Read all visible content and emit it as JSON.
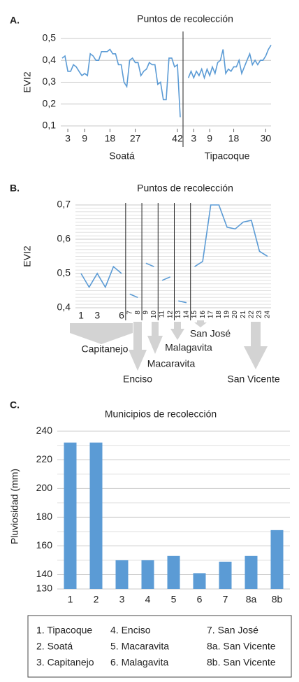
{
  "chart_data": [
    {
      "type": "line",
      "panel_label": "A.",
      "title": "Puntos de recolección",
      "y_label": "EVI2",
      "color": "#5b9bd5",
      "grid": true,
      "ylim": [
        0.1,
        0.5
      ],
      "yticks": [
        {
          "value": 0.1,
          "label": "0,1"
        },
        {
          "value": 0.2,
          "label": "0,2"
        },
        {
          "value": 0.3,
          "label": "0,3"
        },
        {
          "value": 0.4,
          "label": "0,4"
        },
        {
          "value": 0.5,
          "label": "0,5"
        }
      ],
      "series": [
        {
          "name": "Soatá",
          "xlim": [
            0.5,
            44
          ],
          "xticks": [
            3,
            9,
            18,
            27,
            42
          ],
          "x": [
            1,
            2,
            3,
            4,
            5,
            6,
            7,
            8,
            9,
            10,
            11,
            12,
            13,
            14,
            15,
            16,
            17,
            18,
            19,
            20,
            21,
            22,
            23,
            24,
            25,
            26,
            27,
            28,
            29,
            30,
            31,
            32,
            33,
            34,
            35,
            36,
            37,
            38,
            39,
            40,
            41,
            42,
            43
          ],
          "values": [
            0.41,
            0.42,
            0.35,
            0.35,
            0.38,
            0.37,
            0.35,
            0.33,
            0.34,
            0.33,
            0.43,
            0.42,
            0.4,
            0.4,
            0.44,
            0.44,
            0.44,
            0.45,
            0.43,
            0.43,
            0.38,
            0.38,
            0.3,
            0.28,
            0.4,
            0.41,
            0.39,
            0.39,
            0.33,
            0.35,
            0.36,
            0.39,
            0.38,
            0.38,
            0.29,
            0.3,
            0.22,
            0.22,
            0.41,
            0.41,
            0.37,
            0.38,
            0.14
          ]
        },
        {
          "name": "Tipacoque",
          "xlim": [
            -1,
            32
          ],
          "xticks": [
            3,
            9,
            18,
            30
          ],
          "x": [
            1,
            2,
            3,
            4,
            5,
            6,
            7,
            8,
            9,
            10,
            11,
            12,
            13,
            14,
            15,
            16,
            17,
            18,
            19,
            20,
            21,
            22,
            23,
            24,
            25,
            26,
            27,
            28,
            29,
            30,
            31,
            32
          ],
          "values": [
            0.32,
            0.35,
            0.32,
            0.35,
            0.33,
            0.36,
            0.32,
            0.36,
            0.33,
            0.37,
            0.34,
            0.39,
            0.4,
            0.45,
            0.34,
            0.36,
            0.35,
            0.37,
            0.37,
            0.4,
            0.34,
            0.37,
            0.4,
            0.43,
            0.38,
            0.4,
            0.38,
            0.4,
            0.4,
            0.42,
            0.45,
            0.47
          ]
        }
      ]
    },
    {
      "type": "line",
      "panel_label": "B.",
      "title": "Puntos de recolección",
      "y_label": "EVI2",
      "color": "#5b9bd5",
      "grid": true,
      "ylim": [
        0.4,
        0.7
      ],
      "xlim": [
        1,
        24
      ],
      "yticks": [
        {
          "value": 0.4,
          "label": "0,4"
        },
        {
          "value": 0.5,
          "label": "0,5"
        },
        {
          "value": 0.6,
          "label": "0,6"
        },
        {
          "value": 0.7,
          "label": "0,7"
        }
      ],
      "minor_yticks": [
        0.41,
        0.42,
        0.43,
        0.44,
        0.45,
        0.46,
        0.47,
        0.48,
        0.49,
        0.51,
        0.52,
        0.53,
        0.54,
        0.55,
        0.56,
        0.57,
        0.58,
        0.59,
        0.61,
        0.62,
        0.63,
        0.64,
        0.65,
        0.66,
        0.67,
        0.68,
        0.69
      ],
      "xticks": [
        1,
        3,
        6,
        7,
        8,
        9,
        10,
        11,
        12,
        13,
        14,
        15,
        16,
        17,
        18,
        19,
        20,
        21,
        22,
        23,
        24
      ],
      "groups": [
        {
          "name": "Capitanejo",
          "x": [
            1,
            2,
            3,
            4,
            5,
            6
          ],
          "values": [
            0.5,
            0.46,
            0.5,
            0.46,
            0.52,
            0.5
          ]
        },
        {
          "name": "Enciso",
          "x": [
            7,
            8
          ],
          "values": [
            0.44,
            0.43
          ]
        },
        {
          "name": "Macaravita",
          "x": [
            9,
            10
          ],
          "values": [
            0.53,
            0.52
          ]
        },
        {
          "name": "Malagavita",
          "x": [
            11,
            12
          ],
          "values": [
            0.48,
            0.49
          ]
        },
        {
          "name": "San José",
          "x": [
            13,
            14
          ],
          "values": [
            0.42,
            0.415
          ]
        },
        {
          "name": "San Vicente",
          "x": [
            15,
            16,
            17,
            18,
            19,
            20,
            21,
            22,
            23,
            24
          ],
          "values": [
            0.52,
            0.535,
            0.7,
            0.7,
            0.635,
            0.63,
            0.65,
            0.655,
            0.565,
            0.55
          ]
        }
      ]
    },
    {
      "type": "bar",
      "panel_label": "C.",
      "title": "Municipios de recolección",
      "y_label": "Pluviosidad (mm)",
      "color": "#5b9bd5",
      "grid": true,
      "ylim": [
        130,
        245
      ],
      "yticks": [
        130,
        140,
        160,
        180,
        200,
        220,
        240
      ],
      "minor_yticks": [
        150,
        170,
        190,
        210,
        230
      ],
      "categories": [
        "1",
        "2",
        "3",
        "4",
        "5",
        "6",
        "7",
        "8a",
        "8b"
      ],
      "values": [
        232,
        232,
        150,
        150,
        153,
        141,
        149,
        153,
        171
      ],
      "legend_items": [
        "1. Tipacoque",
        "2. Soatá",
        "3. Capitanejo",
        "4. Enciso",
        "5. Macaravita",
        "6. Malagavita",
        "7. San José",
        "8a. San Vicente",
        "8b. San Vicente"
      ]
    }
  ]
}
